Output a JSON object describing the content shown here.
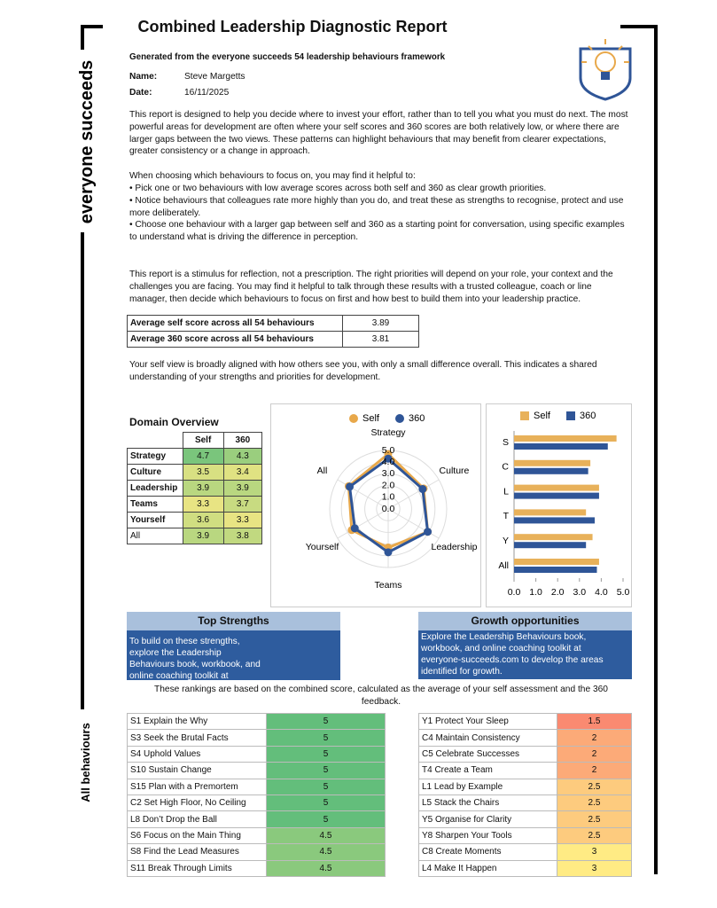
{
  "header": {
    "title": "Combined Leadership Diagnostic Report",
    "subtitle": "Generated from the everyone succeeds 54 leadership behaviours framework",
    "brand": "everyone succeeds",
    "side_label": "All behaviours"
  },
  "meta": {
    "name_label": "Name:",
    "name": "Steve Margetts",
    "date_label": "Date:",
    "date": "16/11/2025"
  },
  "intro": {
    "paragraph_1": "This report is designed to help you decide where to invest your effort, rather than to tell you what you must do next. The most powerful areas for development are often where your self scores and 360 scores are both relatively low, or where there are larger gaps between the two views. These patterns can highlight behaviours that may benefit from clearer expectations, greater consistency or a change in approach.",
    "paragraph_2": "When choosing which behaviours to focus on, you may find it helpful to:",
    "bullets": [
      "• Pick one or two behaviours with low average scores across both self and 360 as clear growth priorities.",
      "• Notice behaviours that colleagues rate more highly than you do, and treat these as strengths to recognise, protect and use more deliberately.",
      "• Choose one behaviour with a larger gap between self and 360 as a starting point for conversation, using specific examples to understand what is driving the difference in perception."
    ],
    "paragraph_3": "This report is a stimulus for reflection, not a prescription. The right priorities will depend on your role, your context and the challenges you are facing. You may find it helpful to talk through these results with a trusted colleague, coach or line manager, then decide which behaviours to focus on first and how best to build them into your leadership practice."
  },
  "averages": {
    "rows": [
      [
        "Average self score across all 54 behaviours",
        3.89
      ],
      [
        "Average 360 score across all 54 behaviours",
        3.81
      ]
    ]
  },
  "summary": "Your self view is broadly aligned with how others see you, with only a small difference overall. This indicates a shared understanding of your strengths and priorities for development.",
  "domain_overview": {
    "title": "Domain Overview",
    "headers": [
      "Self",
      "360"
    ],
    "rows": [
      [
        "Strategy",
        4.7,
        4.3
      ],
      [
        "Culture",
        3.5,
        3.4
      ],
      [
        "Leadership",
        3.9,
        3.9
      ],
      [
        "Teams",
        3.3,
        3.7
      ],
      [
        "Yourself",
        3.6,
        3.3
      ],
      [
        "All",
        3.9,
        3.8
      ]
    ]
  },
  "chart_data": [
    {
      "type": "radar",
      "categories": [
        "Strategy",
        "Culture",
        "Leadership",
        "Teams",
        "Yourself",
        "All"
      ],
      "series": [
        {
          "name": "Self",
          "color": "#e8a84a",
          "values": [
            4.7,
            3.5,
            3.9,
            3.3,
            3.6,
            3.9
          ]
        },
        {
          "name": "360",
          "color": "#2f5597",
          "values": [
            4.3,
            3.4,
            3.9,
            3.7,
            3.3,
            3.8
          ]
        }
      ],
      "rlim": [
        0,
        5
      ],
      "rticks": [
        {
          "value": 0,
          "label": "0.0"
        },
        {
          "value": 1,
          "label": "1.0"
        },
        {
          "value": 2,
          "label": "2.0"
        },
        {
          "value": 3,
          "label": "3.0"
        },
        {
          "value": 4,
          "label": "4.0"
        },
        {
          "value": 5,
          "label": "5.0"
        }
      ],
      "legend": "top"
    },
    {
      "type": "bar",
      "orientation": "horizontal",
      "categories": [
        "S",
        "C",
        "L",
        "T",
        "Y",
        "All"
      ],
      "series": [
        {
          "name": "Self",
          "color": "#e8b15a",
          "values": [
            4.7,
            3.5,
            3.9,
            3.3,
            3.6,
            3.9
          ]
        },
        {
          "name": "360",
          "color": "#2f5597",
          "values": [
            4.3,
            3.4,
            3.9,
            3.7,
            3.3,
            3.8
          ]
        }
      ],
      "xlim": [
        0,
        5
      ],
      "xticks": [
        {
          "value": 0,
          "label": "0.0"
        },
        {
          "value": 1,
          "label": "1.0"
        },
        {
          "value": 2,
          "label": "2.0"
        },
        {
          "value": 3,
          "label": "3.0"
        },
        {
          "value": 4,
          "label": "4.0"
        },
        {
          "value": 5,
          "label": "5.0"
        }
      ],
      "legend": "top"
    }
  ],
  "strengths": {
    "title": "Top Strengths",
    "text": "To build on these strengths, explore the Leadership Behaviours book, workbook, and online coaching toolkit at everyone-succeeds.com."
  },
  "growth": {
    "title": "Growth opportunities",
    "text": "Explore the Leadership Behaviours book, workbook, and online coaching toolkit at everyone-succeeds.com to develop the areas identified for growth."
  },
  "rankings_note": "These rankings are based on the combined score, calculated as the average of your self assessment and the 360 feedback.",
  "strengths_table": {
    "rows": [
      [
        "S1 Explain the Why",
        5
      ],
      [
        "S3 Seek the Brutal Facts",
        5
      ],
      [
        "S4 Uphold Values",
        5
      ],
      [
        "S10 Sustain Change",
        5
      ],
      [
        "S15 Plan with a Premortem",
        5
      ],
      [
        "C2 Set High Floor, No Ceiling",
        5
      ],
      [
        "L8 Don’t Drop the Ball",
        5
      ],
      [
        "S6 Focus on the Main Thing",
        4.5
      ],
      [
        "S8 Find the Lead Measures",
        4.5
      ],
      [
        "S11 Break Through Limits",
        4.5
      ]
    ]
  },
  "growth_table": {
    "rows": [
      [
        "Y1 Protect Your Sleep",
        1.5
      ],
      [
        "C4 Maintain Consistency",
        2
      ],
      [
        "C5 Celebrate Successes",
        2
      ],
      [
        "T4 Create a Team",
        2
      ],
      [
        "L1 Lead by Example",
        2.5
      ],
      [
        "L5 Stack the Chairs",
        2.5
      ],
      [
        "Y5 Organise for Clarity",
        2.5
      ],
      [
        "Y8 Sharpen Your Tools",
        2.5
      ],
      [
        "C8 Create Moments",
        3
      ],
      [
        "L4 Make It Happen",
        3
      ]
    ]
  }
}
